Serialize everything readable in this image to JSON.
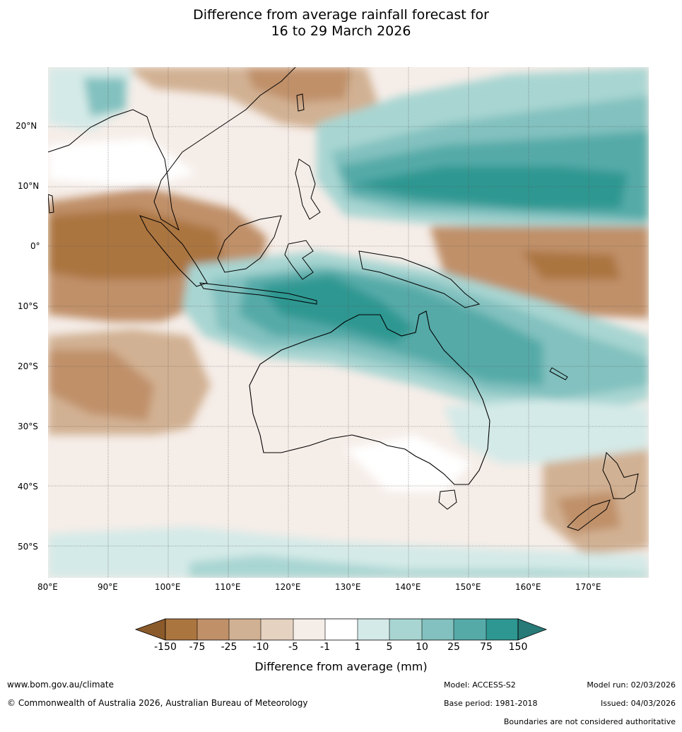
{
  "title": {
    "line1": "Difference from average rainfall forecast for",
    "line2": "16 to 29 March 2026"
  },
  "map": {
    "lat_labels": [
      "20°N",
      "10°N",
      "0°",
      "10°S",
      "20°S",
      "30°S",
      "40°S",
      "50°S"
    ],
    "lon_labels": [
      "80°E",
      "90°E",
      "100°E",
      "110°E",
      "120°E",
      "130°E",
      "140°E",
      "150°E",
      "160°E",
      "170°E"
    ]
  },
  "legend": {
    "title": "Difference from average (mm)",
    "ticks": [
      "-150",
      "-75",
      "-25",
      "-10",
      "-5",
      "-1",
      "1",
      "5",
      "10",
      "25",
      "75",
      "150"
    ],
    "colors": [
      "#8b5a2b",
      "#ab7540",
      "#c09069",
      "#d1b193",
      "#e6d2c0",
      "#f5ede8",
      "#ffffff",
      "#d4eae8",
      "#a8d5d2",
      "#82c1bf",
      "#55aaa8",
      "#2e9791",
      "#277a78"
    ]
  },
  "footer": {
    "url": "www.bom.gov.au/climate",
    "copyright": "© Commonwealth of Australia 2026, Australian Bureau of Meteorology",
    "model": "Model: ACCESS-S2",
    "base_period": "Base period: 1981-2018",
    "model_run": "Model run: 02/03/2026",
    "issued": "Issued: 04/03/2026",
    "disclaimer": "Boundaries are not considered authoritative"
  }
}
